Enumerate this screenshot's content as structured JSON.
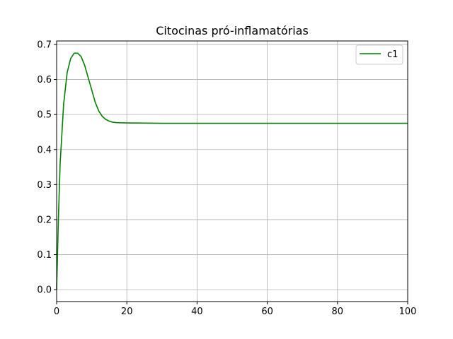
{
  "chart_data": {
    "type": "line",
    "title": "Citocinas pró-inflamatórias",
    "xlabel": "",
    "ylabel": "",
    "xlim": [
      0,
      100
    ],
    "ylim": [
      -0.034,
      0.71
    ],
    "x_ticks": [
      0,
      20,
      40,
      60,
      80,
      100
    ],
    "y_ticks": [
      0.0,
      0.1,
      0.2,
      0.3,
      0.4,
      0.5,
      0.6,
      0.7
    ],
    "x_tick_labels": [
      "0",
      "20",
      "40",
      "60",
      "80",
      "100"
    ],
    "y_tick_labels": [
      "0.0",
      "0.1",
      "0.2",
      "0.3",
      "0.4",
      "0.5",
      "0.6",
      "0.7"
    ],
    "grid": true,
    "legend_position": "top-right",
    "series": [
      {
        "name": "c1",
        "color": "#008000",
        "x": [
          0,
          0.5,
          1,
          2,
          3,
          4,
          5,
          6,
          7,
          8,
          9,
          10,
          11,
          12,
          13,
          14,
          15,
          16,
          17,
          18,
          20,
          25,
          30,
          40,
          60,
          80,
          100
        ],
        "y": [
          0.0,
          0.2,
          0.36,
          0.53,
          0.62,
          0.66,
          0.675,
          0.675,
          0.665,
          0.64,
          0.605,
          0.57,
          0.535,
          0.51,
          0.495,
          0.486,
          0.481,
          0.478,
          0.477,
          0.4765,
          0.476,
          0.4755,
          0.475,
          0.475,
          0.475,
          0.475,
          0.475
        ]
      }
    ]
  }
}
